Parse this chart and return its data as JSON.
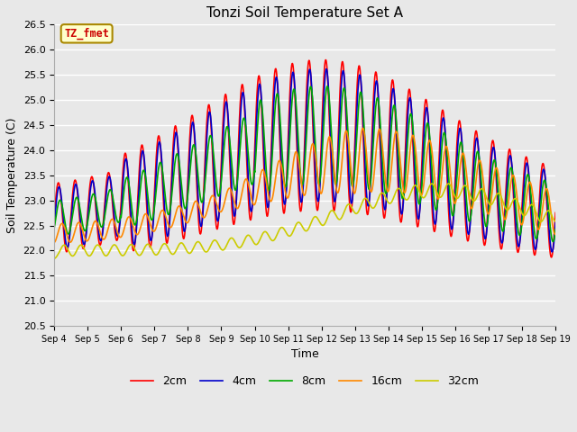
{
  "title": "Tonzi Soil Temperature Set A",
  "xlabel": "Time",
  "ylabel": "Soil Temperature (C)",
  "ylim": [
    20.5,
    26.5
  ],
  "annotation_text": "TZ_fmet",
  "annotation_bg": "#ffffcc",
  "annotation_border": "#aa8800",
  "bg_color": "#e8e8e8",
  "plot_bg": "#e8e8e8",
  "grid_color": "white",
  "legend_labels": [
    "2cm",
    "4cm",
    "8cm",
    "16cm",
    "32cm"
  ],
  "line_colors": [
    "#ff0000",
    "#0000cc",
    "#00aa00",
    "#ff8800",
    "#cccc00"
  ],
  "x_tick_labels": [
    "Sep 4",
    "Sep 5",
    "Sep 6",
    "Sep 7",
    "Sep 8",
    "Sep 9",
    "Sep 10",
    "Sep 11",
    "Sep 12",
    "Sep 13",
    "Sep 14",
    "Sep 15",
    "Sep 16",
    "Sep 17",
    "Sep 18",
    "Sep 19"
  ]
}
